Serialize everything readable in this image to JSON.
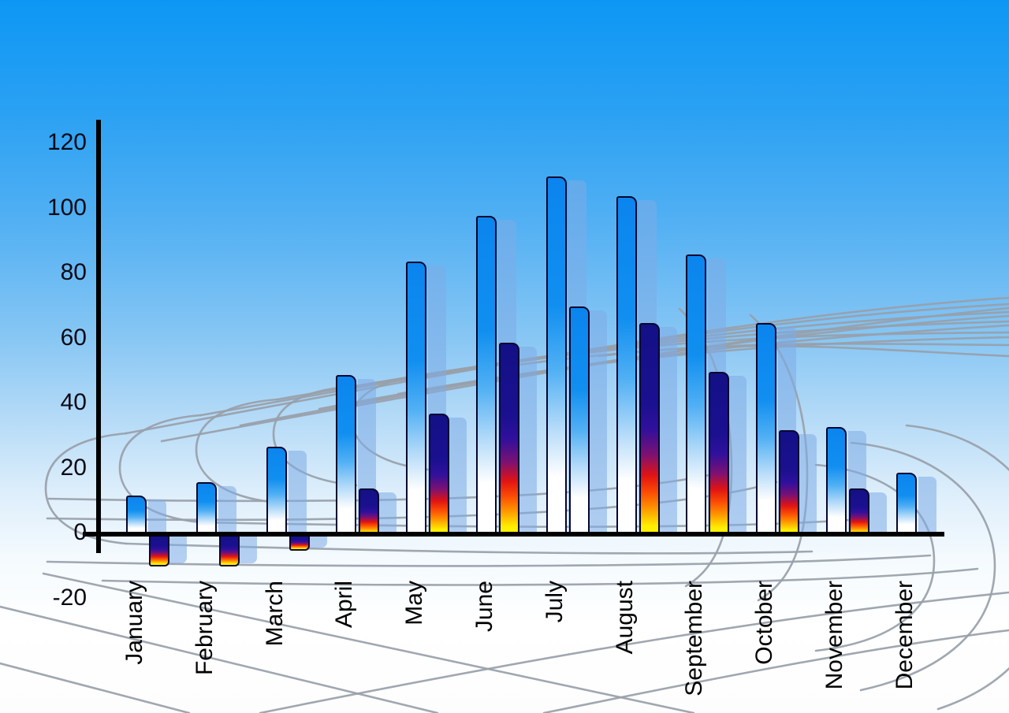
{
  "chart_data": {
    "type": "bar",
    "title": "",
    "xlabel": "",
    "ylabel": "",
    "categories": [
      "January",
      "February",
      "March",
      "April",
      "May",
      "June",
      "July",
      "August",
      "September",
      "October",
      "November",
      "December"
    ],
    "series": [
      {
        "name": "primary-blue-bars",
        "style": "blue",
        "values": [
          12,
          16,
          27,
          49,
          84,
          98,
          110,
          104,
          86,
          65,
          33,
          19
        ]
      },
      {
        "name": "secondary-flame-bars",
        "values": [
          -10,
          -10,
          -5,
          14,
          37,
          59,
          70,
          65,
          50,
          32,
          14,
          null
        ],
        "styles": [
          "fire",
          "fire",
          "fire",
          "fire",
          "fire",
          "fire",
          "blue",
          "fire",
          "fire",
          "fire",
          "fire",
          null
        ]
      }
    ],
    "ylim": [
      -20,
      120
    ],
    "yticks": [
      120,
      100,
      80,
      60,
      40,
      20,
      0,
      -20
    ],
    "ytick_labels": [
      "120",
      "100",
      "80",
      "60",
      "40",
      "20",
      "0",
      "-20"
    ],
    "legend": "none",
    "grid": "decorative gray perspective racetrack grid behind bars",
    "notes": "Each bar has a translucent light-blue shadow copy offset to the right; July secondary bar uses the blue-white style instead of the flame gradient; December has no secondary bar; January-March secondary bars are negative."
  },
  "colors": {
    "sky_top": "#0d97f5",
    "sky_bottom": "#ffffff",
    "bar_blue_top": "#0b85ee",
    "bar_bottom_fade": "#ffffff",
    "bar_outline": "#06062e",
    "shadow_bar": "rgba(126,172,230,0.55)",
    "fire_navy": "#131086",
    "fire_red": "#e01313",
    "fire_orange": "#ff9800",
    "fire_yellow": "#fff400",
    "grid_line": "#98a0a9",
    "axis": "#000000",
    "label_text": "#000000"
  }
}
